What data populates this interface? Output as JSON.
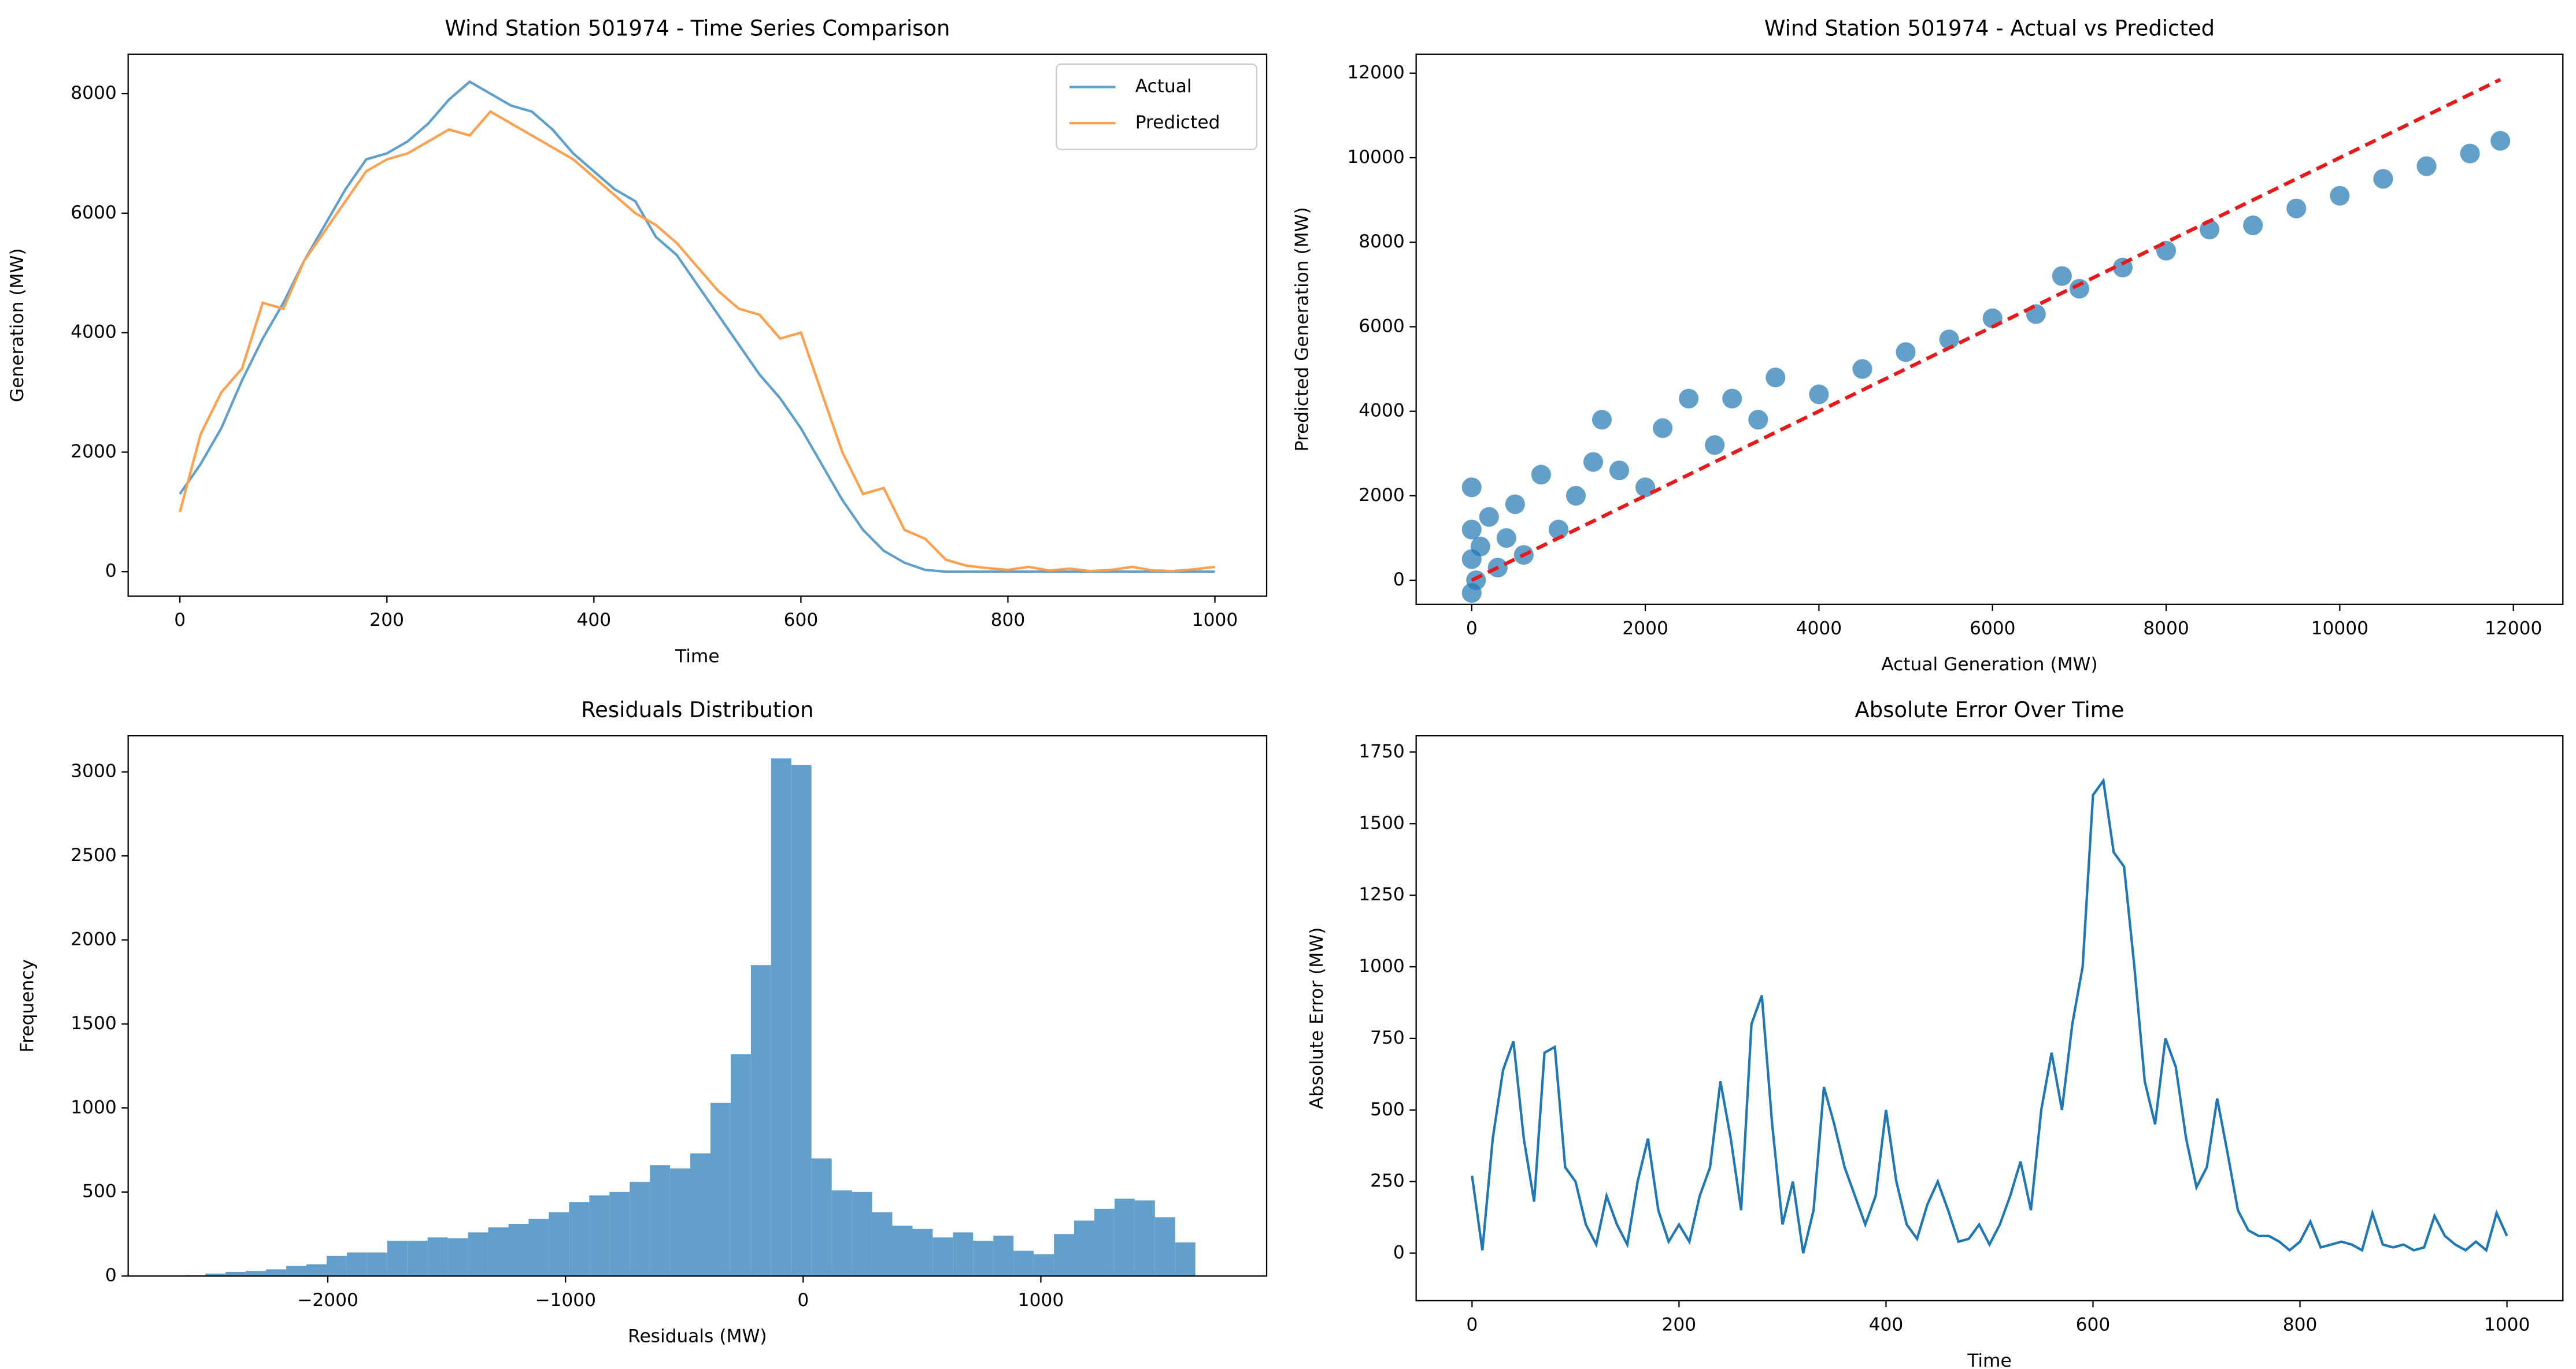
{
  "chart_data": [
    {
      "type": "line",
      "title": "Wind Station 501974 - Time Series Comparison",
      "xlabel": "Time",
      "ylabel": "Generation (MW)",
      "x": [
        0,
        20,
        40,
        60,
        80,
        100,
        120,
        140,
        160,
        180,
        200,
        220,
        240,
        260,
        280,
        300,
        320,
        340,
        360,
        380,
        400,
        420,
        440,
        460,
        480,
        500,
        520,
        540,
        560,
        580,
        600,
        620,
        640,
        660,
        680,
        700,
        720,
        740,
        760,
        780,
        800,
        820,
        840,
        860,
        880,
        900,
        920,
        940,
        960,
        980,
        1000
      ],
      "series": [
        {
          "name": "Actual",
          "color": "#5f9fcc",
          "values": [
            1300,
            1800,
            2400,
            3200,
            3900,
            4500,
            5200,
            5800,
            6400,
            6900,
            7000,
            7200,
            7500,
            7900,
            8200,
            8000,
            7800,
            7700,
            7400,
            7000,
            6700,
            6400,
            6200,
            5600,
            5300,
            4800,
            4300,
            3800,
            3300,
            2900,
            2400,
            1800,
            1200,
            700,
            350,
            150,
            30,
            0,
            0,
            0,
            0,
            0,
            0,
            0,
            0,
            0,
            0,
            0,
            0,
            0,
            0
          ]
        },
        {
          "name": "Predicted",
          "color": "#ffa04f",
          "values": [
            1000,
            2300,
            3000,
            3400,
            4500,
            4400,
            5200,
            5700,
            6200,
            6700,
            6900,
            7000,
            7200,
            7400,
            7300,
            7700,
            7500,
            7300,
            7100,
            6900,
            6600,
            6300,
            6000,
            5800,
            5500,
            5100,
            4700,
            4400,
            4300,
            3900,
            4000,
            3000,
            2000,
            1300,
            1400,
            700,
            550,
            200,
            100,
            60,
            30,
            80,
            20,
            50,
            10,
            30,
            80,
            20,
            10,
            40,
            80
          ]
        }
      ],
      "xlim": [
        -50,
        1050
      ],
      "ylim": [
        -410,
        8660
      ],
      "xticks": [
        0,
        200,
        400,
        600,
        800,
        1000
      ],
      "yticks": [
        0,
        2000,
        4000,
        6000,
        8000
      ],
      "legend": "upper right"
    },
    {
      "type": "scatter",
      "title": "Wind Station 501974 - Actual vs Predicted",
      "xlabel": "Actual Generation (MW)",
      "ylabel": "Predicted Generation (MW)",
      "x": [
        0,
        0,
        0,
        0,
        50,
        100,
        200,
        300,
        400,
        500,
        600,
        800,
        1000,
        1200,
        1400,
        1500,
        1700,
        2000,
        2200,
        2500,
        2800,
        3000,
        3300,
        3500,
        4000,
        4500,
        5000,
        5500,
        6000,
        6500,
        6800,
        7000,
        7500,
        8000,
        8500,
        9000,
        9500,
        10000,
        10500,
        11000,
        11500,
        11850
      ],
      "y": [
        -300,
        500,
        1200,
        2200,
        0,
        800,
        1500,
        300,
        1000,
        1800,
        600,
        2500,
        1200,
        2000,
        2800,
        3800,
        2600,
        2200,
        3600,
        4300,
        3200,
        4300,
        3800,
        4800,
        4400,
        5000,
        5400,
        5700,
        6200,
        6300,
        7200,
        6900,
        7400,
        7800,
        8300,
        8400,
        8800,
        9100,
        9500,
        9800,
        10100,
        10400
      ],
      "color": "#1f77b4",
      "reference_line": {
        "x": [
          0,
          11850
        ],
        "y": [
          0,
          11850
        ],
        "color": "#e8191a"
      },
      "xlim": [
        -640,
        12570
      ],
      "ylim": [
        -570,
        12450
      ],
      "xticks": [
        0,
        2000,
        4000,
        6000,
        8000,
        10000,
        12000
      ],
      "yticks": [
        0,
        2000,
        4000,
        6000,
        8000,
        10000,
        12000
      ]
    },
    {
      "type": "histogram",
      "title": "Residuals Distribution",
      "xlabel": "Residuals (MW)",
      "ylabel": "Frequency",
      "bins": [
        -2600,
        -2515,
        -2430,
        -2345,
        -2260,
        -2175,
        -2090,
        -2005,
        -1920,
        -1835,
        -1750,
        -1665,
        -1580,
        -1495,
        -1410,
        -1325,
        -1240,
        -1155,
        -1070,
        -985,
        -900,
        -815,
        -730,
        -645,
        -560,
        -475,
        -390,
        -305,
        -220,
        -135,
        -50,
        35,
        120,
        205,
        290,
        375,
        460,
        545,
        630,
        715,
        800,
        885,
        970,
        1055,
        1140,
        1225,
        1310,
        1395,
        1480,
        1565,
        1650
      ],
      "values": [
        5,
        15,
        25,
        30,
        40,
        60,
        70,
        120,
        140,
        140,
        210,
        210,
        230,
        225,
        260,
        290,
        310,
        340,
        380,
        440,
        480,
        500,
        560,
        660,
        640,
        730,
        1030,
        1320,
        1850,
        3080,
        3040,
        700,
        510,
        500,
        380,
        300,
        280,
        230,
        260,
        210,
        240,
        150,
        130,
        250,
        330,
        400,
        460,
        450,
        350,
        200
      ],
      "color": "#62a0cb",
      "xlim": [
        -2840,
        1950
      ],
      "ylim": [
        0,
        3215
      ],
      "xticks": [
        {
          "value": -2000,
          "label": "−2000"
        },
        {
          "value": -1000,
          "label": "−1000"
        },
        0,
        1000
      ],
      "yticks": [
        0,
        500,
        1000,
        1500,
        2000,
        2500,
        3000
      ]
    },
    {
      "type": "line",
      "title": "Absolute Error Over Time",
      "xlabel": "Time",
      "ylabel": "Absolute Error (MW)",
      "x": [
        0,
        10,
        20,
        30,
        40,
        50,
        60,
        70,
        80,
        90,
        100,
        110,
        120,
        130,
        140,
        150,
        160,
        170,
        180,
        190,
        200,
        210,
        220,
        230,
        240,
        250,
        260,
        270,
        280,
        290,
        300,
        310,
        320,
        330,
        340,
        350,
        360,
        370,
        380,
        390,
        400,
        410,
        420,
        430,
        440,
        450,
        460,
        470,
        480,
        490,
        500,
        510,
        520,
        530,
        540,
        550,
        560,
        570,
        580,
        590,
        600,
        610,
        620,
        630,
        640,
        650,
        660,
        670,
        680,
        690,
        700,
        710,
        720,
        730,
        740,
        750,
        760,
        770,
        780,
        790,
        800,
        810,
        820,
        830,
        840,
        850,
        860,
        870,
        880,
        890,
        900,
        910,
        920,
        930,
        940,
        950,
        960,
        970,
        980,
        990,
        1000
      ],
      "series": [
        {
          "name": "Absolute Error",
          "color": "#1f77b4",
          "values": [
            270,
            10,
            400,
            640,
            740,
            400,
            180,
            700,
            720,
            300,
            250,
            100,
            30,
            200,
            100,
            30,
            250,
            400,
            150,
            40,
            100,
            40,
            200,
            300,
            600,
            400,
            150,
            800,
            900,
            450,
            100,
            250,
            0,
            150,
            580,
            450,
            300,
            200,
            100,
            200,
            500,
            250,
            100,
            50,
            170,
            250,
            150,
            40,
            50,
            100,
            30,
            100,
            200,
            320,
            150,
            500,
            700,
            500,
            800,
            1000,
            1600,
            1650,
            1400,
            1350,
            1000,
            600,
            450,
            750,
            650,
            400,
            230,
            300,
            540,
            350,
            150,
            80,
            60,
            60,
            40,
            10,
            40,
            110,
            20,
            30,
            40,
            30,
            10,
            140,
            30,
            20,
            30,
            10,
            20,
            130,
            60,
            30,
            10,
            40,
            10,
            140,
            60
          ]
        }
      ],
      "xlim": [
        -54,
        1054
      ],
      "ylim": [
        -166,
        1807
      ],
      "xticks": [
        0,
        200,
        400,
        600,
        800,
        1000
      ],
      "yticks": [
        0,
        250,
        500,
        750,
        1000,
        1250,
        1500,
        1750
      ]
    }
  ]
}
